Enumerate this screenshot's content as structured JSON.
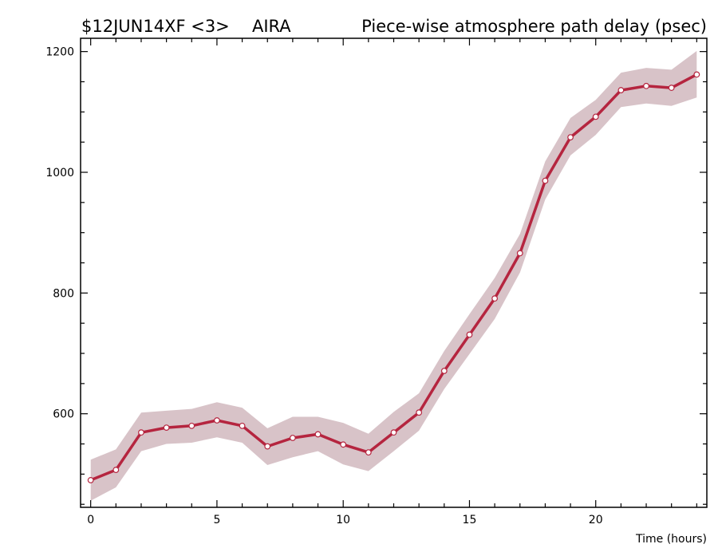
{
  "header": {
    "experiment": "$12JUN14XF <3>",
    "station": "AIRA",
    "title": "Piece-wise atmosphere path delay (psec)"
  },
  "chart_data": {
    "type": "line",
    "title": "Piece-wise atmosphere path delay (psec)",
    "xlabel": "Time (hours)",
    "ylabel": "",
    "xlim": [
      -0.4,
      24.4
    ],
    "ylim": [
      445,
      1222
    ],
    "x_ticks": [
      0,
      5,
      10,
      15,
      20
    ],
    "y_ticks": [
      600,
      800,
      1000,
      1200
    ],
    "grid": false,
    "colors": {
      "line": "#b5253f",
      "band": "#d8c3c8",
      "marker_fill": "#ffffff"
    },
    "series": [
      {
        "x": [
          0,
          1,
          2,
          3,
          4,
          5,
          6,
          7,
          8,
          9,
          10,
          11,
          12,
          13,
          14,
          15,
          16,
          17,
          18,
          19,
          20,
          21,
          22,
          23,
          24
        ],
        "values": [
          490,
          507,
          569,
          577,
          580,
          589,
          580,
          546,
          560,
          566,
          549,
          536,
          569,
          602,
          671,
          731,
          791,
          866,
          986,
          1058,
          1092,
          1136,
          1143,
          1140,
          1162
        ],
        "upper": [
          524,
          541,
          602,
          605,
          608,
          619,
          610,
          576,
          595,
          595,
          585,
          567,
          603,
          634,
          704,
          765,
          825,
          898,
          1018,
          1090,
          1120,
          1165,
          1173,
          1170,
          1201
        ],
        "lower": [
          456,
          478,
          538,
          550,
          552,
          561,
          552,
          515,
          528,
          538,
          516,
          505,
          538,
          572,
          641,
          699,
          757,
          834,
          955,
          1028,
          1062,
          1108,
          1114,
          1110,
          1124
        ]
      }
    ]
  }
}
